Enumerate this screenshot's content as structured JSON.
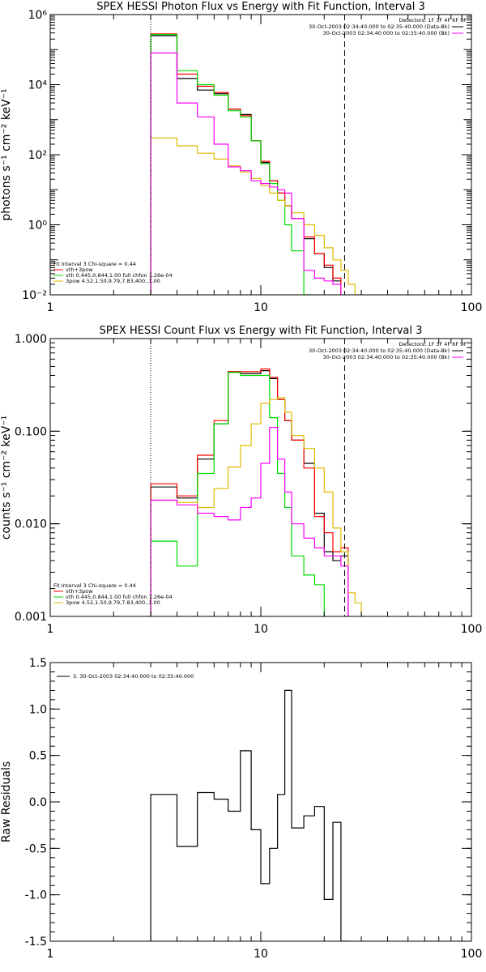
{
  "chart_data": [
    {
      "type": "line",
      "title": "SPEX HESSI Photon Flux vs Energy with Fit Function, Interval 3",
      "xlabel": "",
      "ylabel": "photons s⁻¹ cm⁻² keV⁻¹",
      "xscale": "log",
      "yscale": "log",
      "xlim": [
        1,
        100
      ],
      "ylim": [
        0.01,
        1000000
      ],
      "xticks": [
        1,
        10,
        100
      ],
      "xtick_labels": [
        "1",
        "10",
        "100"
      ],
      "yticks": [
        0.01,
        1,
        100,
        10000,
        1000000
      ],
      "ytick_labels": [
        "10⁻²",
        "10⁰",
        "10²",
        "10⁴",
        "10⁶"
      ],
      "grid": false,
      "vlines": [
        {
          "x": 3,
          "style": "dotted"
        },
        {
          "x": 25,
          "style": "dashed"
        }
      ],
      "legend_header": "Detectors: 1F 3F 4F 6F 9F",
      "legend": [
        {
          "text": "30-Oct-2003 02:34:40.000 to 02:35:40.000 (Data-Bk)",
          "color": "#000000"
        },
        {
          "text": "30-Oct-2003 02:34:40.000 to 02:35:40.000 (Bk)",
          "color": "#ff00ff"
        }
      ],
      "fit_legend": {
        "header": "Fit Interval 3   Chi-square = 0.44",
        "entries": [
          {
            "text": "vth+3pow",
            "color": "#ff0000"
          },
          {
            "text": "vth 0.445,0.844,1.00  full chfon 1.26e-04",
            "color": "#00dd00"
          },
          {
            "text": "3pow 4.52,1.50,9.79,7.83,400.,1.00",
            "color": "#ddbb00"
          }
        ]
      },
      "bin_edges": [
        3,
        4,
        5,
        6,
        7,
        8,
        9,
        10,
        11,
        12,
        13,
        14,
        16,
        18,
        20,
        22,
        24,
        26,
        28,
        30
      ],
      "series": [
        {
          "name": "",
          "color": "#000000",
          "values": [
            250000,
            15000,
            7000,
            5500,
            2000,
            1400,
            250,
            60,
            18,
            8,
            3.5,
            1.5,
            0.4,
            0.15,
            0.06,
            0.025,
            null,
            null,
            null
          ]
        },
        {
          "name": "",
          "color": "#ff0000",
          "values": [
            280000,
            20000,
            9000,
            6000,
            2000,
            1300,
            250,
            65,
            18,
            8,
            3.5,
            1.5,
            0.45,
            0.15,
            0.07,
            0.03,
            null,
            null,
            null
          ]
        },
        {
          "name": "",
          "color": "#00dd00",
          "values": [
            270000,
            25000,
            10000,
            5000,
            1800,
            1200,
            250,
            55,
            15,
            5,
            1,
            0.18,
            0.01,
            null,
            null,
            null,
            null,
            null,
            null
          ]
        },
        {
          "name": "",
          "color": "#ddbb00",
          "values": [
            300,
            180,
            110,
            75,
            48,
            32,
            21,
            13,
            8,
            5,
            3.5,
            2.2,
            1,
            0.5,
            0.22,
            0.1,
            0.05,
            0.02,
            0.01
          ]
        },
        {
          "name": "",
          "color": "#ff00ff",
          "values": [
            80000,
            3000,
            1200,
            200,
            45,
            35,
            18,
            15,
            12,
            10,
            8,
            1.5,
            0.05,
            0.03,
            0.025,
            0.02,
            null,
            null,
            null
          ]
        }
      ]
    },
    {
      "type": "line",
      "title": "SPEX HESSI Count Flux vs Energy with Fit Function, Interval 3",
      "xlabel": "",
      "ylabel": "counts s⁻¹ cm⁻² keV⁻¹",
      "xscale": "log",
      "yscale": "log",
      "xlim": [
        1,
        100
      ],
      "ylim": [
        0.001,
        1
      ],
      "xticks": [
        1,
        10,
        100
      ],
      "xtick_labels": [
        "1",
        "10",
        "100"
      ],
      "yticks": [
        0.001,
        0.01,
        0.1,
        1
      ],
      "ytick_labels": [
        "0.001",
        "0.010",
        "0.100",
        "1.000"
      ],
      "grid": false,
      "vlines": [
        {
          "x": 3,
          "style": "dotted"
        },
        {
          "x": 25,
          "style": "dashed"
        }
      ],
      "legend_header": "Detectors: 1F 3F 4F 6F 9F",
      "legend": [
        {
          "text": "30-Oct-2003 02:34:40.000 to 02:35:40.000 (Data-Bk)",
          "color": "#000000"
        },
        {
          "text": "30-Oct-2003 02:34:40.000 to 02:35:40.000 (Bk)",
          "color": "#ff00ff"
        }
      ],
      "fit_legend": {
        "header": "Fit Interval 3   Chi-square = 0.44",
        "entries": [
          {
            "text": "vth+3pow",
            "color": "#ff0000"
          },
          {
            "text": "vth 0.445,0.844,1.00  full chfon 1.26e-04",
            "color": "#00dd00"
          },
          {
            "text": "3pow 4.52,1.50,9.79,7.83,400.,1.00",
            "color": "#ddbb00"
          }
        ]
      },
      "bin_edges": [
        3,
        4,
        5,
        6,
        7,
        8,
        9,
        10,
        11,
        12,
        13,
        14,
        16,
        18,
        20,
        22,
        24,
        26,
        28,
        30
      ],
      "series": [
        {
          "name": "",
          "color": "#000000",
          "values": [
            0.025,
            0.019,
            0.05,
            0.12,
            0.44,
            0.42,
            0.42,
            0.45,
            0.37,
            0.22,
            0.13,
            0.08,
            0.045,
            0.013,
            0.005,
            0.004,
            0.0045,
            null,
            null
          ]
        },
        {
          "name": "",
          "color": "#ff0000",
          "values": [
            0.027,
            0.02,
            0.055,
            0.13,
            0.44,
            0.44,
            0.44,
            0.47,
            0.38,
            0.22,
            0.13,
            0.08,
            0.04,
            0.012,
            0.008,
            0.005,
            0.0055,
            null,
            null
          ]
        },
        {
          "name": "",
          "color": "#00dd00",
          "values": [
            0.0065,
            0.0035,
            0.035,
            0.12,
            0.43,
            0.4,
            0.4,
            0.4,
            0.14,
            0.035,
            0.015,
            0.0045,
            0.0028,
            0.0022,
            null,
            null,
            null,
            null,
            null
          ]
        },
        {
          "name": "",
          "color": "#ddbb00",
          "values": [
            0.018,
            0.017,
            0.015,
            0.024,
            0.041,
            0.07,
            0.12,
            0.2,
            0.22,
            0.23,
            0.16,
            0.09,
            0.065,
            0.04,
            0.022,
            0.009,
            0.005,
            0.0018,
            0.0014
          ]
        },
        {
          "name": "",
          "color": "#ff00ff",
          "values": [
            0.018,
            0.016,
            0.013,
            0.012,
            0.011,
            0.015,
            0.019,
            0.045,
            0.11,
            0.05,
            0.022,
            0.01,
            0.007,
            0.0055,
            0.0045,
            0.0045,
            0.0035,
            null,
            null
          ]
        }
      ]
    },
    {
      "type": "line",
      "title": "",
      "xlabel": "",
      "ylabel": "Raw Residuals",
      "xscale": "log",
      "yscale": "linear",
      "xlim": [
        1,
        100
      ],
      "ylim": [
        -1.5,
        1.5
      ],
      "xticks": [
        1,
        10,
        100
      ],
      "xtick_labels": [
        "1",
        "10",
        "100"
      ],
      "yticks": [
        -1.5,
        -1.0,
        -0.5,
        0.0,
        0.5,
        1.0,
        1.5
      ],
      "ytick_labels": [
        "-1.5",
        "-1.0",
        "-0.5",
        "0.0",
        "0.5",
        "1.0",
        "1.5"
      ],
      "grid": false,
      "legend": [
        {
          "text": "3. 30-Oct-2003 02:34:40.000 to 02:35:40.000",
          "color": "#000000"
        }
      ],
      "bin_edges": [
        3,
        4,
        5,
        6,
        7,
        8,
        9,
        10,
        11,
        12,
        13,
        14,
        16,
        18,
        20,
        22,
        24,
        26
      ],
      "series": [
        {
          "name": "",
          "color": "#000000",
          "values": [
            0.08,
            -0.48,
            0.1,
            0.03,
            -0.1,
            0.55,
            -0.3,
            -0.88,
            -0.5,
            0.08,
            1.2,
            -0.28,
            -0.15,
            -0.05,
            -1.05,
            -0.22,
            -1.5
          ]
        }
      ]
    }
  ]
}
